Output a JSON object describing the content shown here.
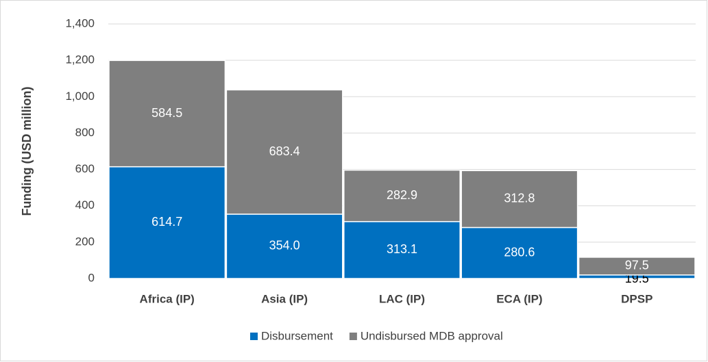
{
  "chart_data": {
    "type": "stacked_bar",
    "y_label": "Funding (USD million)",
    "categories": [
      "Africa (IP)",
      "Asia (IP)",
      "LAC (IP)",
      "ECA (IP)",
      "DPSP"
    ],
    "series": [
      {
        "name": "Disbursement",
        "color": "#0070c0",
        "values": [
          614.7,
          354.0,
          313.1,
          280.6,
          19.5
        ],
        "value_labels": [
          "614.7",
          "354.0",
          "313.1",
          "280.6",
          "19.5"
        ]
      },
      {
        "name": "Undisbursed MDB approval",
        "color": "#7f7f7f",
        "values": [
          584.5,
          683.4,
          282.9,
          312.8,
          97.5
        ],
        "value_labels": [
          "584.5",
          "683.4",
          "282.9",
          "312.8",
          "97.5"
        ]
      }
    ],
    "ylim": [
      0,
      1400
    ],
    "yticks": [
      0,
      200,
      400,
      600,
      800,
      {
        "value": 1000,
        "label": "1,000"
      },
      {
        "value": 1200,
        "label": "1,200"
      },
      {
        "value": 1400,
        "label": "1,400"
      }
    ],
    "grid": true,
    "legend": "bottom"
  }
}
